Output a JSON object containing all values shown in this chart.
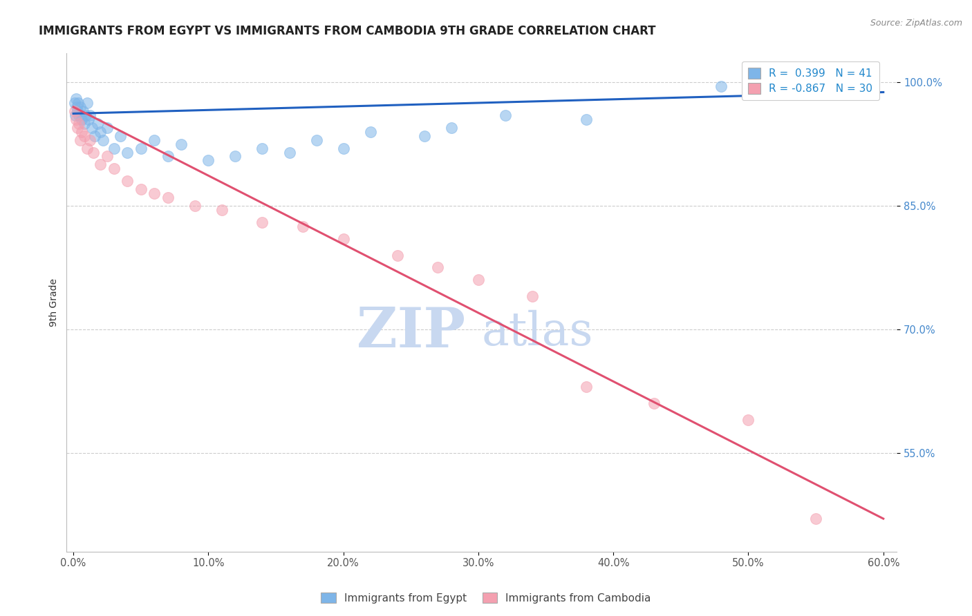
{
  "title": "IMMIGRANTS FROM EGYPT VS IMMIGRANTS FROM CAMBODIA 9TH GRADE CORRELATION CHART",
  "source": "Source: ZipAtlas.com",
  "ylabel": "9th Grade",
  "egypt_color": "#7EB5E8",
  "cambodia_color": "#F4A0B0",
  "egypt_line_color": "#2060C0",
  "cambodia_line_color": "#E05070",
  "egypt_R": 0.399,
  "egypt_N": 41,
  "cambodia_R": -0.867,
  "cambodia_N": 30,
  "watermark_zip": "ZIP",
  "watermark_atlas": "atlas",
  "watermark_color": "#C8D8F0",
  "xlim_min": -0.5,
  "xlim_max": 61.0,
  "ylim_min": 43.0,
  "ylim_max": 103.5,
  "x_tick_vals": [
    0,
    10,
    20,
    30,
    40,
    50,
    60
  ],
  "y_tick_vals": [
    55,
    70,
    85,
    100
  ],
  "egypt_x": [
    0.1,
    0.15,
    0.2,
    0.25,
    0.3,
    0.35,
    0.4,
    0.5,
    0.6,
    0.7,
    0.8,
    0.9,
    1.0,
    1.1,
    1.2,
    1.4,
    1.6,
    1.8,
    2.0,
    2.2,
    2.5,
    3.0,
    3.5,
    4.0,
    5.0,
    6.0,
    7.0,
    8.0,
    10.0,
    12.0,
    14.0,
    16.0,
    18.0,
    20.0,
    22.0,
    26.0,
    28.0,
    32.0,
    38.0,
    48.0,
    52.0
  ],
  "egypt_y": [
    97.5,
    96.0,
    98.0,
    97.0,
    96.5,
    97.5,
    96.0,
    97.0,
    95.5,
    96.5,
    95.0,
    96.0,
    97.5,
    95.5,
    96.0,
    94.5,
    93.5,
    95.0,
    94.0,
    93.0,
    94.5,
    92.0,
    93.5,
    91.5,
    92.0,
    93.0,
    91.0,
    92.5,
    90.5,
    91.0,
    92.0,
    91.5,
    93.0,
    92.0,
    94.0,
    93.5,
    94.5,
    96.0,
    95.5,
    99.5,
    100.5
  ],
  "cambodia_x": [
    0.1,
    0.2,
    0.3,
    0.4,
    0.5,
    0.6,
    0.8,
    1.0,
    1.2,
    1.5,
    2.0,
    2.5,
    3.0,
    4.0,
    5.0,
    6.0,
    7.0,
    9.0,
    11.0,
    14.0,
    17.0,
    20.0,
    24.0,
    27.0,
    30.0,
    34.0,
    38.0,
    43.0,
    50.0,
    55.0
  ],
  "cambodia_y": [
    96.5,
    95.5,
    94.5,
    95.0,
    93.0,
    94.0,
    93.5,
    92.0,
    93.0,
    91.5,
    90.0,
    91.0,
    89.5,
    88.0,
    87.0,
    86.5,
    86.0,
    85.0,
    84.5,
    83.0,
    82.5,
    81.0,
    79.0,
    77.5,
    76.0,
    74.0,
    63.0,
    61.0,
    59.0,
    47.0
  ],
  "egypt_line_x": [
    0,
    60
  ],
  "egypt_line_y": [
    96.2,
    98.8
  ],
  "cambodia_line_x": [
    0,
    60
  ],
  "cambodia_line_y": [
    97.0,
    47.0
  ]
}
